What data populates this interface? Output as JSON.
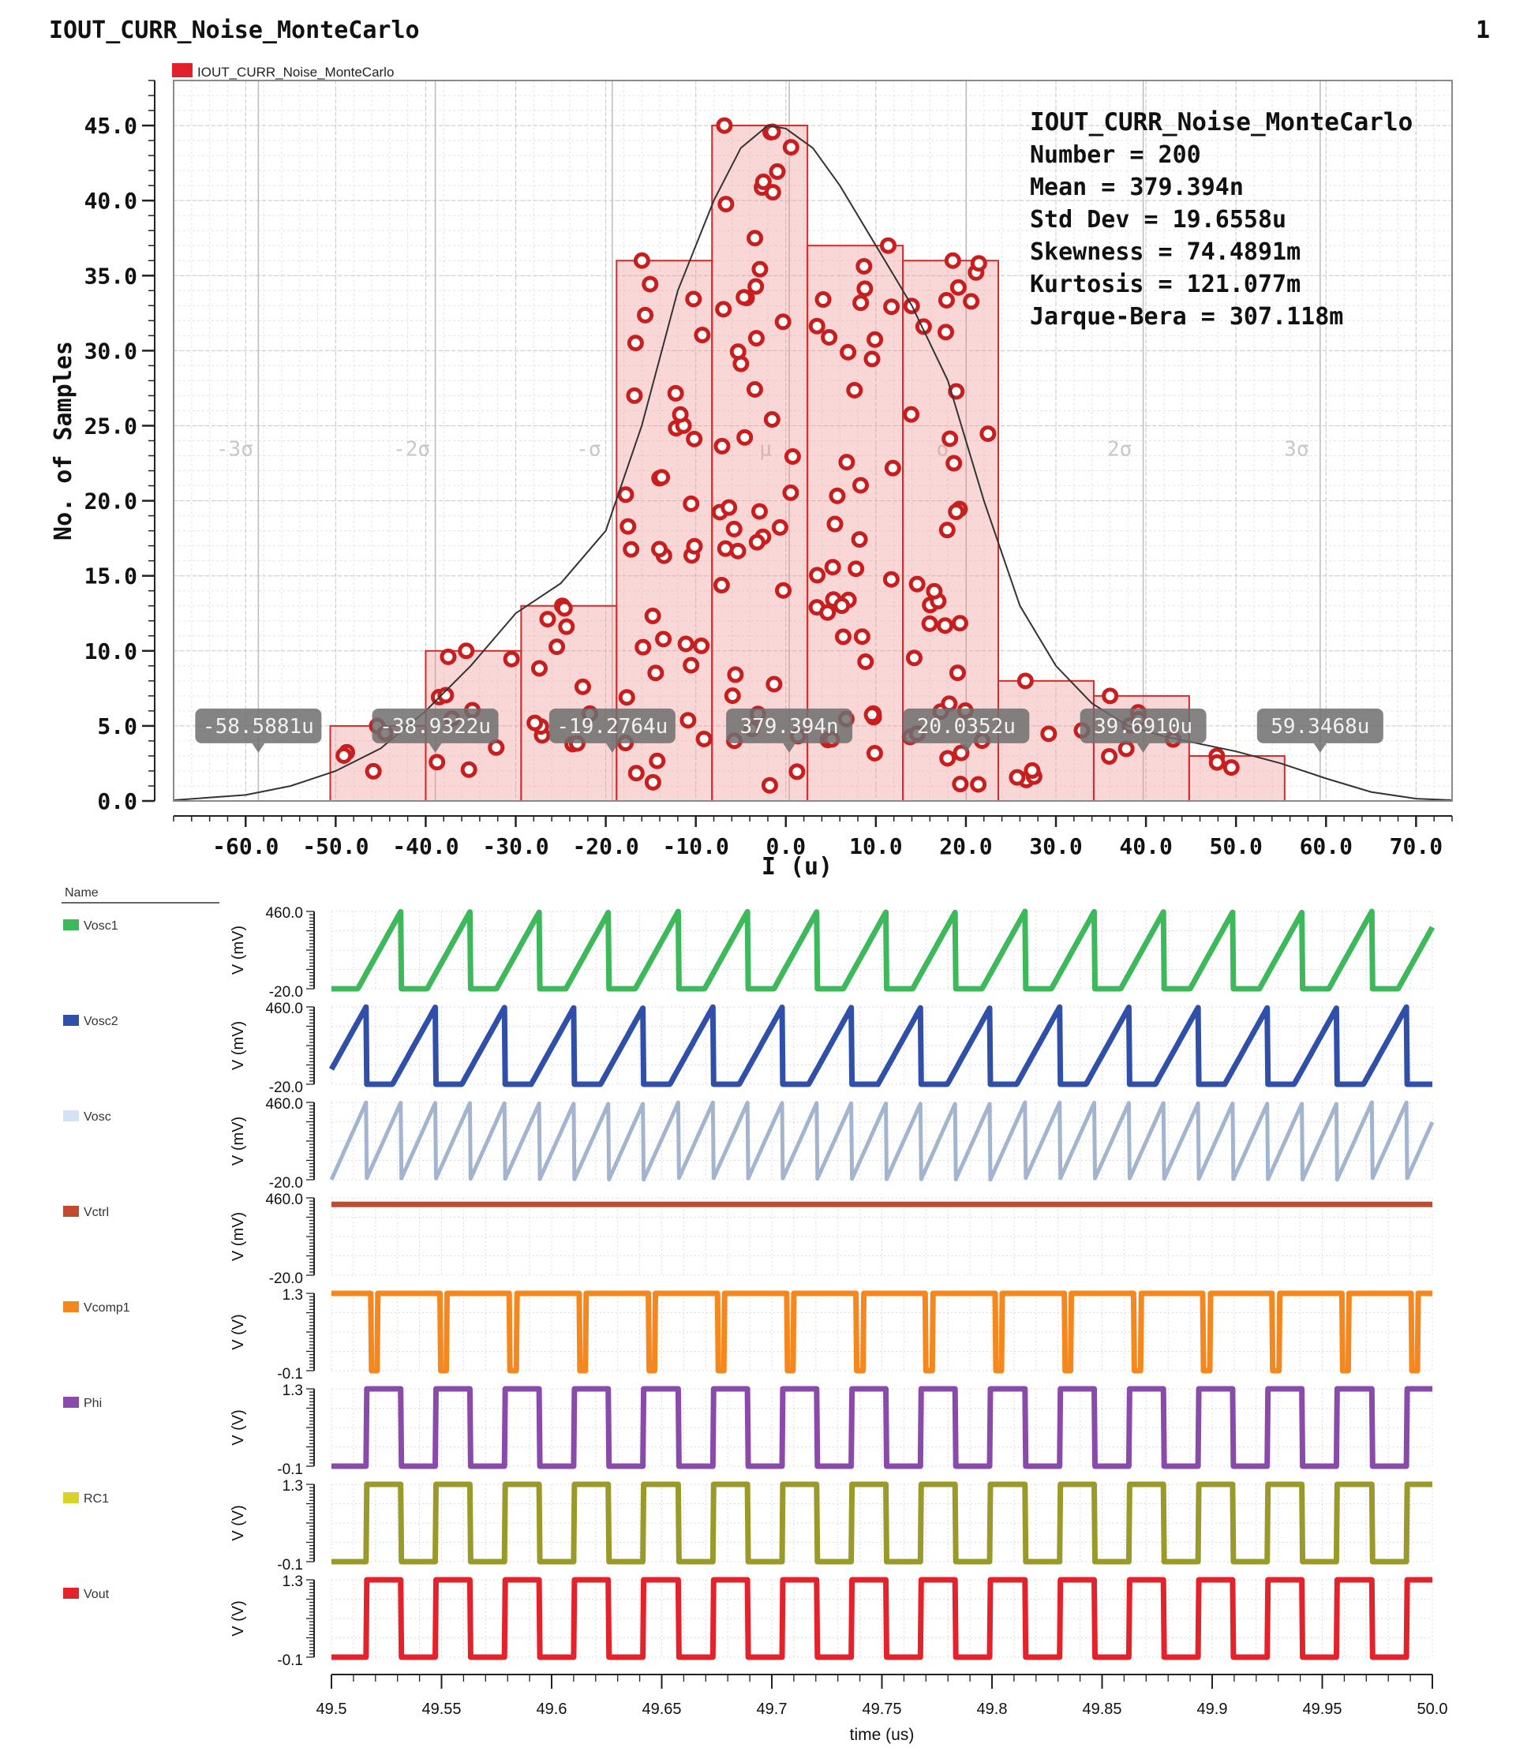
{
  "page": {
    "title": "IOUT_CURR_Noise_MonteCarlo",
    "page_number": "1"
  },
  "chart_data": [
    {
      "type": "bar",
      "subtype": "histogram",
      "legend": {
        "label": "IOUT_CURR_Noise_MonteCarlo",
        "color": "#e0202a",
        "placement": "top-left"
      },
      "xlabel": "I (u)",
      "ylabel": "No. of Samples",
      "xlim": [
        -68,
        74
      ],
      "ylim": [
        0,
        48
      ],
      "xticks": [
        -60,
        -50,
        -40,
        -30,
        -20,
        -10,
        0,
        10,
        20,
        30,
        40,
        50,
        60,
        70
      ],
      "xtick_labels": [
        "-60.0",
        "-50.0",
        "-40.0",
        "-30.0",
        "-20.0",
        "-10.0",
        "0.0",
        "10.0",
        "20.0",
        "30.0",
        "40.0",
        "50.0",
        "60.0",
        "70.0"
      ],
      "yticks": [
        0,
        5,
        10,
        15,
        20,
        25,
        30,
        35,
        40,
        45
      ],
      "ytick_labels": [
        "0.0",
        "5.0",
        "10.0",
        "15.0",
        "20.0",
        "25.0",
        "30.0",
        "35.0",
        "40.0",
        "45.0"
      ],
      "grid": true,
      "bins": [
        {
          "x0": -50.6,
          "x1": -40.0,
          "count": 5
        },
        {
          "x0": -40.0,
          "x1": -29.4,
          "count": 10
        },
        {
          "x0": -29.4,
          "x1": -18.8,
          "count": 13
        },
        {
          "x0": -18.8,
          "x1": -8.2,
          "count": 36
        },
        {
          "x0": -8.2,
          "x1": 2.4,
          "count": 45
        },
        {
          "x0": 2.4,
          "x1": 13.0,
          "count": 37
        },
        {
          "x0": 13.0,
          "x1": 23.6,
          "count": 36
        },
        {
          "x0": 23.6,
          "x1": 34.2,
          "count": 8
        },
        {
          "x0": 34.2,
          "x1": 44.8,
          "count": 7
        },
        {
          "x0": 44.8,
          "x1": 55.4,
          "count": 3
        }
      ],
      "fit_curve": {
        "x": [
          -68,
          -60,
          -55,
          -50,
          -45,
          -40,
          -35,
          -30,
          -25,
          -20,
          -16,
          -12,
          -8,
          -5,
          -2,
          0,
          3,
          6,
          10,
          14,
          18,
          22,
          26,
          30,
          34,
          38,
          42,
          46,
          50,
          55,
          60,
          65,
          70,
          74
        ],
        "y": [
          0.05,
          0.4,
          1.0,
          2.0,
          3.5,
          6.0,
          9.0,
          12.5,
          14.5,
          18.0,
          25.0,
          34.0,
          40.0,
          43.5,
          45.0,
          44.8,
          43.5,
          41.0,
          37.0,
          33.0,
          28.0,
          20.0,
          13.0,
          9.0,
          6.5,
          5.0,
          4.3,
          3.8,
          3.3,
          2.5,
          1.5,
          0.6,
          0.15,
          0.05
        ]
      },
      "sigma_bands": {
        "x": [
          -58.5881,
          -38.9322,
          -19.2764,
          0.379394,
          20.0352,
          39.691,
          59.3468
        ],
        "labels": [
          "-3σ",
          "-2σ",
          "-σ",
          "μ",
          "σ",
          "2σ",
          "3σ"
        ],
        "markers": [
          "-58.5881u",
          "-38.9322u",
          "-19.2764u",
          "379.394n",
          "20.0352u",
          "39.6910u",
          "59.3468u"
        ]
      },
      "stats": {
        "title": "IOUT_CURR_Noise_MonteCarlo",
        "lines": [
          "Number = 200",
          "Mean = 379.394n",
          "Std Dev = 19.6558u",
          "Skewness = 74.4891m",
          "Kurtosis = 121.077m",
          "Jarque-Bera = 307.118m"
        ]
      },
      "samples_per_bin": [
        5,
        10,
        13,
        36,
        45,
        37,
        36,
        8,
        7,
        3
      ]
    },
    {
      "type": "line",
      "subtype": "transient-waveforms",
      "legend_header": "Name",
      "xlabel": "time (us)",
      "xlim": [
        49.5,
        50.0
      ],
      "xticks": [
        49.5,
        49.55,
        49.6,
        49.65,
        49.7,
        49.75,
        49.8,
        49.85,
        49.9,
        49.95,
        50.0
      ],
      "xtick_labels": [
        "49.5",
        "49.55",
        "49.6",
        "49.65",
        "49.7",
        "49.75",
        "49.8",
        "49.85",
        "49.9",
        "49.95",
        "50.0"
      ],
      "series": [
        {
          "name": "Vosc1",
          "color": "#3db85a",
          "ylabel": "V (mV)",
          "ylim": [
            -20,
            460
          ],
          "ytick_labels": [
            "460.0",
            "-20.0"
          ],
          "shape": "sawtooth",
          "period": 0.0315,
          "phase": 0.0,
          "low": -20,
          "high": 460,
          "rise_fraction": 0.62
        },
        {
          "name": "Vosc2",
          "color": "#2f4fa8",
          "ylabel": "V (mV)",
          "ylim": [
            -20,
            460
          ],
          "ytick_labels": [
            "460.0",
            "-20.0"
          ],
          "shape": "sawtooth",
          "period": 0.0315,
          "phase": 0.01575,
          "low": -20,
          "high": 460,
          "rise_fraction": 0.62
        },
        {
          "name": "Vosc",
          "color": "#a3b4cf",
          "ylabel": "V (mV)",
          "ylim": [
            -20,
            460
          ],
          "ytick_labels": [
            "460.0",
            "-20.0"
          ],
          "shape": "ramp",
          "period": 0.01575,
          "phase": 0.0,
          "low": -20,
          "high": 460
        },
        {
          "name": "Vctrl",
          "color": "#c24a2f",
          "ylabel": "V (mV)",
          "ylim": [
            -20,
            460
          ],
          "ytick_labels": [
            "460.0",
            "-20.0"
          ],
          "shape": "dc",
          "value": 420
        },
        {
          "name": "Vcomp1",
          "color": "#f5871f",
          "ylabel": "V (V)",
          "ylim": [
            -0.1,
            1.3
          ],
          "ytick_labels": [
            "1.3",
            "-0.1"
          ],
          "shape": "dips",
          "period": 0.0315,
          "phase": 0.018,
          "low": -0.1,
          "high": 1.3,
          "dip_width": 0.003
        },
        {
          "name": "Phi",
          "color": "#8a4aaa",
          "ylabel": "V (V)",
          "ylim": [
            -0.1,
            1.3
          ],
          "ytick_labels": [
            "1.3",
            "-0.1"
          ],
          "shape": "square",
          "period": 0.0315,
          "phase": 0.0,
          "low": -0.1,
          "high": 1.3,
          "duty": 0.5
        },
        {
          "name": "RC1",
          "color": "#9a9a2a",
          "ylabel": "V (V)",
          "ylim": [
            -0.1,
            1.3
          ],
          "ytick_labels": [
            "1.3",
            "-0.1"
          ],
          "shape": "square",
          "period": 0.0315,
          "phase": 0.0,
          "low": -0.1,
          "high": 1.3,
          "duty": 0.5
        },
        {
          "name": "Vout",
          "color": "#e3222b",
          "ylabel": "V (V)",
          "ylim": [
            -0.1,
            1.3
          ],
          "ytick_labels": [
            "1.3",
            "-0.1"
          ],
          "shape": "square",
          "period": 0.0315,
          "phase": 0.0,
          "low": -0.1,
          "high": 1.3,
          "duty": 0.5
        }
      ]
    }
  ],
  "legend_colors": {
    "Vosc1": "#3db85a",
    "Vosc2": "#2f4fa8",
    "Vosc": "#d4e2f4",
    "Vctrl": "#c24a2f",
    "Vcomp1": "#f5871f",
    "Phi": "#8a4aaa",
    "RC1": "#d8d22a",
    "Vout": "#e3222b"
  }
}
